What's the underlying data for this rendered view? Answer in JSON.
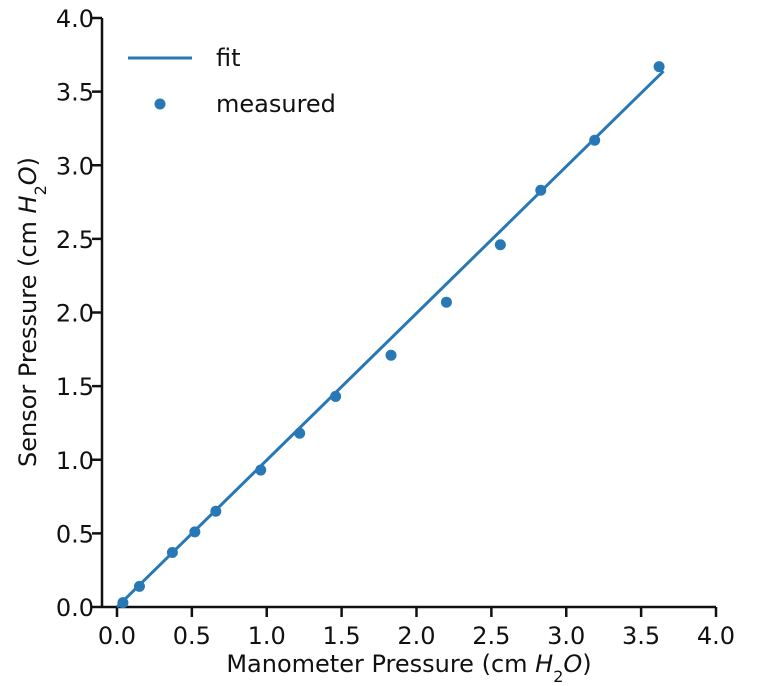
{
  "chart_data": {
    "type": "scatter",
    "xlabel": {
      "prefix": "Manometer Pressure (cm ",
      "var": "H",
      "sub": "2",
      "var2": "O",
      "suffix": ")"
    },
    "ylabel": {
      "prefix": "Sensor Pressure (cm ",
      "var": "H",
      "sub": "2",
      "var2": "O",
      "suffix": ")"
    },
    "xlim": [
      0.0,
      4.0
    ],
    "ylim": [
      0.0,
      4.0
    ],
    "xticks": [
      "0.0",
      "0.5",
      "1.0",
      "1.5",
      "2.0",
      "2.5",
      "3.0",
      "3.5",
      "4.0"
    ],
    "yticks": [
      "0.0",
      "0.5",
      "1.0",
      "1.5",
      "2.0",
      "2.5",
      "3.0",
      "3.5",
      "4.0"
    ],
    "grid": false,
    "legend_position": "top-left",
    "color": "#2878b5",
    "series": [
      {
        "name": "fit",
        "kind": "line",
        "x": [
          0.0,
          3.65
        ],
        "y": [
          0.0,
          3.64
        ]
      },
      {
        "name": "measured",
        "kind": "scatter",
        "x": [
          0.04,
          0.15,
          0.37,
          0.52,
          0.66,
          0.96,
          1.22,
          1.46,
          1.83,
          2.2,
          2.56,
          2.83,
          3.19,
          3.62
        ],
        "y": [
          0.03,
          0.14,
          0.37,
          0.51,
          0.65,
          0.93,
          1.18,
          1.43,
          1.71,
          2.07,
          2.46,
          2.83,
          3.17,
          3.67
        ]
      }
    ]
  }
}
